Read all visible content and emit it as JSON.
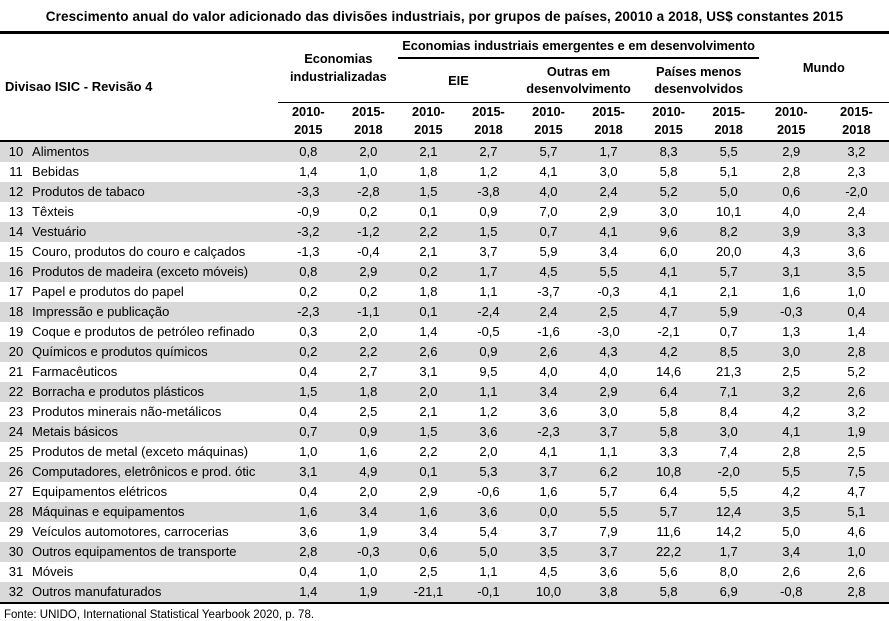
{
  "header": {
    "title": "Crescimento anual do valor adicionado das divisões industriais, por grupos de países, 20010 a 2018, US$ constantes 2015"
  },
  "table": {
    "row_header": "Divisao ISIC - Revisão 4",
    "group_industrialized": "Economias industrializadas",
    "group_emerging": "Economias industriais emergentes e em desenvolvimento",
    "group_world": "Mundo",
    "subgroups": {
      "eie": "EIE",
      "other": "Outras em desenvolvimento",
      "ldc": "Países menos desenvolvidos"
    },
    "period_a": "2010-\n2015",
    "period_b": "2015-\n2018",
    "rows": [
      {
        "code": "10",
        "label": "Alimentos",
        "values": [
          "0,8",
          "2,0",
          "2,1",
          "2,7",
          "5,7",
          "1,7",
          "8,3",
          "5,5",
          "2,9",
          "3,2"
        ]
      },
      {
        "code": "11",
        "label": "Bebidas",
        "values": [
          "1,4",
          "1,0",
          "1,8",
          "1,2",
          "4,1",
          "3,0",
          "5,8",
          "5,1",
          "2,8",
          "2,3"
        ]
      },
      {
        "code": "12",
        "label": "Produtos de tabaco",
        "values": [
          "-3,3",
          "-2,8",
          "1,5",
          "-3,8",
          "4,0",
          "2,4",
          "5,2",
          "5,0",
          "0,6",
          "-2,0"
        ]
      },
      {
        "code": "13",
        "label": "Têxteis",
        "values": [
          "-0,9",
          "0,2",
          "0,1",
          "0,9",
          "7,0",
          "2,9",
          "3,0",
          "10,1",
          "4,0",
          "2,4"
        ]
      },
      {
        "code": "14",
        "label": "Vestuário",
        "values": [
          "-3,2",
          "-1,2",
          "2,2",
          "1,5",
          "0,7",
          "4,1",
          "9,6",
          "8,2",
          "3,9",
          "3,3"
        ]
      },
      {
        "code": "15",
        "label": "Couro, produtos do couro e calçados",
        "values": [
          "-1,3",
          "-0,4",
          "2,1",
          "3,7",
          "5,9",
          "3,4",
          "6,0",
          "20,0",
          "4,3",
          "3,6"
        ]
      },
      {
        "code": "16",
        "label": "Produtos de madeira (exceto móveis)",
        "values": [
          "0,8",
          "2,9",
          "0,2",
          "1,7",
          "4,5",
          "5,5",
          "4,1",
          "5,7",
          "3,1",
          "3,5"
        ]
      },
      {
        "code": "17",
        "label": "Papel e produtos do papel",
        "values": [
          "0,2",
          "0,2",
          "1,8",
          "1,1",
          "-3,7",
          "-0,3",
          "4,1",
          "2,1",
          "1,6",
          "1,0"
        ]
      },
      {
        "code": "18",
        "label": "Impressão e publicação",
        "values": [
          "-2,3",
          "-1,1",
          "0,1",
          "-2,4",
          "2,4",
          "2,5",
          "4,7",
          "5,9",
          "-0,3",
          "0,4"
        ]
      },
      {
        "code": "19",
        "label": "Coque e produtos de petróleo refinado",
        "values": [
          "0,3",
          "2,0",
          "1,4",
          "-0,5",
          "-1,6",
          "-3,0",
          "-2,1",
          "0,7",
          "1,3",
          "1,4"
        ]
      },
      {
        "code": "20",
        "label": "Químicos e produtos químicos",
        "values": [
          "0,2",
          "2,2",
          "2,6",
          "0,9",
          "2,6",
          "4,3",
          "4,2",
          "8,5",
          "3,0",
          "2,8"
        ]
      },
      {
        "code": "21",
        "label": "Farmacêuticos",
        "values": [
          "0,4",
          "2,7",
          "3,1",
          "9,5",
          "4,0",
          "4,0",
          "14,6",
          "21,3",
          "2,5",
          "5,2"
        ]
      },
      {
        "code": "22",
        "label": "Borracha e produtos plásticos",
        "values": [
          "1,5",
          "1,8",
          "2,0",
          "1,1",
          "3,4",
          "2,9",
          "6,4",
          "7,1",
          "3,2",
          "2,6"
        ]
      },
      {
        "code": "23",
        "label": "Produtos minerais não-metálicos",
        "values": [
          "0,4",
          "2,5",
          "2,1",
          "1,2",
          "3,6",
          "3,0",
          "5,8",
          "8,4",
          "4,2",
          "3,2"
        ]
      },
      {
        "code": "24",
        "label": "Metais básicos",
        "values": [
          "0,7",
          "0,9",
          "1,5",
          "3,6",
          "-2,3",
          "3,7",
          "5,8",
          "3,0",
          "4,1",
          "1,9"
        ]
      },
      {
        "code": "25",
        "label": "Produtos de metal (exceto máquinas)",
        "values": [
          "1,0",
          "1,6",
          "2,2",
          "2,0",
          "4,1",
          "1,1",
          "3,3",
          "7,4",
          "2,8",
          "2,5"
        ]
      },
      {
        "code": "26",
        "label": "Computadores, eletrônicos e prod. ótic",
        "values": [
          "3,1",
          "4,9",
          "0,1",
          "5,3",
          "3,7",
          "6,2",
          "10,8",
          "-2,0",
          "5,5",
          "7,5"
        ]
      },
      {
        "code": "27",
        "label": "Equipamentos elétricos",
        "values": [
          "0,4",
          "2,0",
          "2,9",
          "-0,6",
          "1,6",
          "5,7",
          "6,4",
          "5,5",
          "4,2",
          "4,7"
        ]
      },
      {
        "code": "28",
        "label": "Máquinas e equipamentos",
        "values": [
          "1,6",
          "3,4",
          "1,6",
          "3,6",
          "0,0",
          "5,5",
          "5,7",
          "12,4",
          "3,5",
          "5,1"
        ]
      },
      {
        "code": "29",
        "label": "Veículos automotores, carrocerias",
        "values": [
          "3,6",
          "1,9",
          "3,4",
          "5,4",
          "3,7",
          "7,9",
          "11,6",
          "14,2",
          "5,0",
          "4,6"
        ]
      },
      {
        "code": "30",
        "label": "Outros equipamentos de transporte",
        "values": [
          "2,8",
          "-0,3",
          "0,6",
          "5,0",
          "3,5",
          "3,7",
          "22,2",
          "1,7",
          "3,4",
          "1,0"
        ]
      },
      {
        "code": "31",
        "label": "Móveis",
        "values": [
          "0,4",
          "1,0",
          "2,5",
          "1,1",
          "4,5",
          "3,6",
          "5,6",
          "8,0",
          "2,6",
          "2,6"
        ]
      },
      {
        "code": "32",
        "label": "Outros manufaturados",
        "values": [
          "1,4",
          "1,9",
          "-21,1",
          "-0,1",
          "10,0",
          "3,8",
          "5,8",
          "6,9",
          "-0,8",
          "2,8"
        ]
      }
    ]
  },
  "footer": {
    "source": "Fonte: UNIDO, International Statistical Yearbook 2020, p. 78."
  },
  "colors": {
    "stripe": "#d9d9d9",
    "border": "#000000"
  }
}
